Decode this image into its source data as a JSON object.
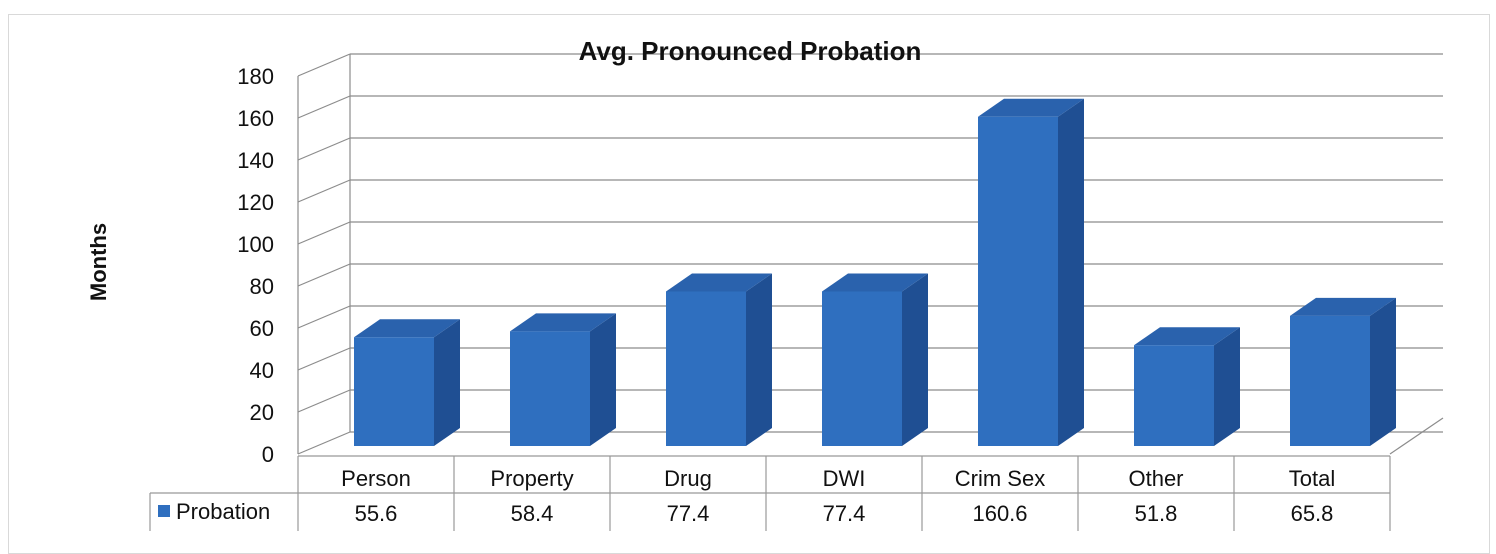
{
  "chart_data": {
    "type": "bar",
    "title": "Avg. Pronounced Probation",
    "xlabel": "",
    "ylabel": "Months",
    "categories": [
      "Person",
      "Property",
      "Drug",
      "DWI",
      "Crim Sex",
      "Other",
      "Total"
    ],
    "series": [
      {
        "name": "Probation",
        "values": [
          55.6,
          58.4,
          77.4,
          77.4,
          160.6,
          51.8,
          65.8
        ],
        "value_labels": [
          "55.6",
          "58.4",
          "77.4",
          "77.4",
          "160.6",
          "51.8",
          "65.8"
        ],
        "color": "#2f6fbf"
      }
    ],
    "ylim": [
      0,
      180
    ],
    "yticks": [
      "0",
      "20",
      "40",
      "60",
      "80",
      "100",
      "120",
      "140",
      "160",
      "180"
    ],
    "grid": true,
    "legend": "data-table",
    "style": "3d-column"
  },
  "colors": {
    "bar_front": "#2f6fbf",
    "bar_side": "#1f4f93",
    "bar_top": "#2a62ad",
    "grid": "#8c8c8c",
    "legend_key": "#2f6fbf"
  }
}
